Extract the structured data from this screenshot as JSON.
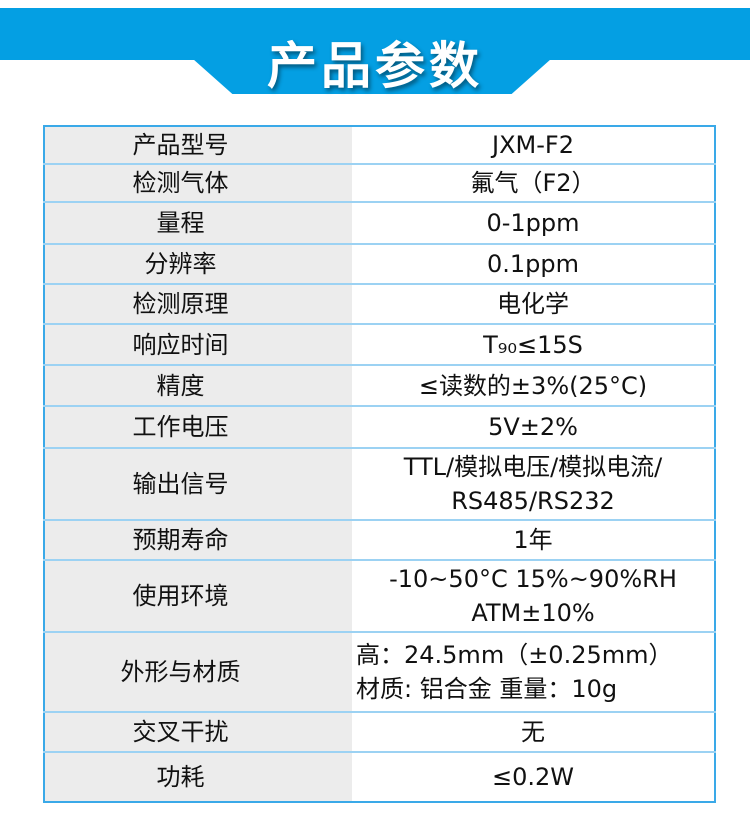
{
  "header": {
    "title": "产品参数",
    "color": "#049fe3"
  },
  "rows": [
    {
      "label": "产品型号",
      "value": "JXM-F2"
    },
    {
      "label": "检测气体",
      "value": "氟气（F2）"
    },
    {
      "label": "量程",
      "value": "0-1ppm"
    },
    {
      "label": "分辨率",
      "value": "0.1ppm"
    },
    {
      "label": "检测原理",
      "value": "电化学"
    },
    {
      "label": "响应时间",
      "value": "T₉₀≤15S"
    },
    {
      "label": "精度",
      "value": "≤读数的±3%(25°C)"
    },
    {
      "label": "工作电压",
      "value": "5V±2%"
    },
    {
      "label": "输出信号",
      "value": "TTL/模拟电压/模拟电流/",
      "value2": "RS485/RS232"
    },
    {
      "label": "预期寿命",
      "value": "1年"
    },
    {
      "label": "使用环境",
      "value": "-10~50°C 15%~90%RH",
      "value2": "ATM±10%"
    },
    {
      "label": "外形与材质",
      "value": "高：24.5mm（±0.25mm）",
      "value2": "材质: 铝合金  重量：10g"
    },
    {
      "label": "交叉干扰",
      "value": "无"
    },
    {
      "label": "功耗",
      "value": "≤0.2W"
    }
  ]
}
